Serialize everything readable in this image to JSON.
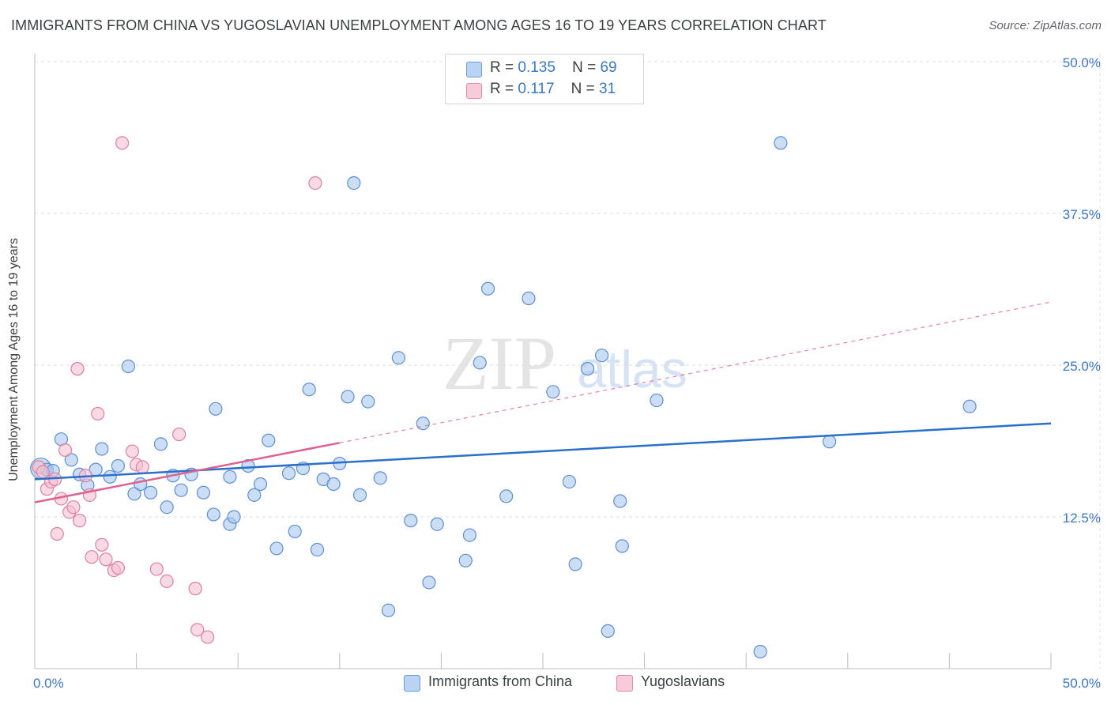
{
  "header": {
    "title": "IMMIGRANTS FROM CHINA VS YUGOSLAVIAN UNEMPLOYMENT AMONG AGES 16 TO 19 YEARS CORRELATION CHART",
    "source": "Source: ZipAtlas.com"
  },
  "legend": {
    "china": {
      "r_label": "R =",
      "r_value": "0.135",
      "n_label": "N =",
      "n_value": "69"
    },
    "yugo": {
      "r_label": "R =",
      "r_value": "0.117",
      "n_label": "N =",
      "n_value": "31"
    }
  },
  "bottom_legend": {
    "china": "Immigrants from China",
    "yugo": "Yugoslavians"
  },
  "colors": {
    "china_fill": "#a9c8ef",
    "china_stroke": "#5b8fd6",
    "china_line": "#2a6fcc",
    "yugo_fill": "#f5c0d1",
    "yugo_stroke": "#e07fa0",
    "yugo_line": "#e0608f",
    "tick_text": "#3a78c8",
    "grid": "#dcdcdc"
  },
  "watermark": {
    "zip": "ZIP",
    "atlas": "atlas"
  },
  "chart_data": {
    "type": "scatter",
    "title": "IMMIGRANTS FROM CHINA VS YUGOSLAVIAN UNEMPLOYMENT AMONG AGES 16 TO 19 YEARS CORRELATION CHART",
    "xlabel": "",
    "ylabel": "Unemployment Among Ages 16 to 19 years",
    "xlim": [
      0,
      50
    ],
    "ylim": [
      0,
      50
    ],
    "x_tick_labels": [
      {
        "value": 0,
        "label": "0.0%"
      },
      {
        "value": 50,
        "label": "50.0%"
      }
    ],
    "y_tick_labels": [
      {
        "value": 12.5,
        "label": "12.5%"
      },
      {
        "value": 25,
        "label": "25.0%"
      },
      {
        "value": 37.5,
        "label": "37.5%"
      },
      {
        "value": 50,
        "label": "50.0%"
      }
    ],
    "series": [
      {
        "name": "Immigrants from China",
        "points": [
          [
            0.3,
            16.5
          ],
          [
            0.6,
            16.4
          ],
          [
            0.9,
            16.3
          ],
          [
            1.3,
            18.9
          ],
          [
            1.8,
            17.2
          ],
          [
            2.2,
            16.0
          ],
          [
            2.6,
            15.1
          ],
          [
            3.0,
            16.4
          ],
          [
            3.3,
            18.1
          ],
          [
            3.7,
            15.8
          ],
          [
            4.1,
            16.7
          ],
          [
            4.6,
            24.9
          ],
          [
            4.9,
            14.4
          ],
          [
            5.2,
            15.2
          ],
          [
            5.7,
            14.5
          ],
          [
            6.2,
            18.5
          ],
          [
            6.5,
            13.3
          ],
          [
            6.8,
            15.9
          ],
          [
            7.2,
            14.7
          ],
          [
            7.7,
            16.0
          ],
          [
            8.3,
            14.5
          ],
          [
            8.8,
            12.7
          ],
          [
            8.9,
            21.4
          ],
          [
            9.6,
            11.9
          ],
          [
            9.6,
            15.8
          ],
          [
            9.8,
            12.5
          ],
          [
            10.5,
            16.7
          ],
          [
            10.8,
            14.3
          ],
          [
            11.1,
            15.2
          ],
          [
            11.5,
            18.8
          ],
          [
            11.9,
            9.9
          ],
          [
            12.5,
            16.1
          ],
          [
            12.8,
            11.3
          ],
          [
            13.2,
            16.5
          ],
          [
            13.5,
            23.0
          ],
          [
            13.9,
            9.8
          ],
          [
            14.2,
            15.6
          ],
          [
            14.7,
            15.2
          ],
          [
            15.0,
            16.9
          ],
          [
            15.4,
            22.4
          ],
          [
            15.7,
            40.0
          ],
          [
            16.0,
            14.3
          ],
          [
            16.4,
            22.0
          ],
          [
            17.0,
            15.7
          ],
          [
            17.4,
            4.8
          ],
          [
            17.9,
            25.6
          ],
          [
            18.5,
            12.2
          ],
          [
            19.1,
            20.2
          ],
          [
            19.4,
            7.1
          ],
          [
            19.8,
            11.9
          ],
          [
            21.2,
            8.9
          ],
          [
            21.4,
            11.0
          ],
          [
            21.9,
            25.2
          ],
          [
            22.3,
            31.3
          ],
          [
            23.2,
            14.2
          ],
          [
            24.3,
            30.5
          ],
          [
            25.5,
            22.8
          ],
          [
            26.3,
            15.4
          ],
          [
            26.6,
            8.6
          ],
          [
            27.2,
            24.7
          ],
          [
            27.9,
            25.8
          ],
          [
            28.2,
            3.1
          ],
          [
            28.8,
            13.8
          ],
          [
            28.9,
            10.1
          ],
          [
            30.6,
            22.1
          ],
          [
            35.7,
            1.4
          ],
          [
            36.7,
            43.3
          ],
          [
            39.1,
            18.7
          ],
          [
            46.0,
            21.6
          ]
        ],
        "trend": {
          "x0": 0,
          "y0": 15.6,
          "x1": 50,
          "y1": 20.2
        }
      },
      {
        "name": "Yugoslavians",
        "points": [
          [
            0.2,
            16.6
          ],
          [
            0.4,
            16.2
          ],
          [
            0.6,
            14.8
          ],
          [
            0.8,
            15.4
          ],
          [
            1.0,
            15.6
          ],
          [
            1.1,
            11.1
          ],
          [
            1.3,
            14.0
          ],
          [
            1.5,
            18.0
          ],
          [
            1.7,
            12.9
          ],
          [
            1.9,
            13.3
          ],
          [
            2.1,
            24.7
          ],
          [
            2.2,
            12.2
          ],
          [
            2.5,
            15.9
          ],
          [
            2.7,
            14.3
          ],
          [
            2.8,
            9.2
          ],
          [
            3.1,
            21.0
          ],
          [
            3.3,
            10.2
          ],
          [
            3.5,
            9.0
          ],
          [
            3.9,
            8.1
          ],
          [
            4.1,
            8.3
          ],
          [
            4.3,
            43.3
          ],
          [
            4.8,
            17.9
          ],
          [
            5.0,
            16.8
          ],
          [
            5.3,
            16.6
          ],
          [
            6.0,
            8.2
          ],
          [
            6.5,
            7.2
          ],
          [
            7.1,
            19.3
          ],
          [
            7.9,
            6.6
          ],
          [
            8.0,
            3.2
          ],
          [
            8.5,
            2.6
          ],
          [
            13.8,
            40.0
          ]
        ],
        "trend": {
          "x0": 0,
          "y0": 13.7,
          "x1": 15,
          "y1": 18.6
        },
        "trend_extension": {
          "x0": 15,
          "y0": 18.6,
          "x1": 50,
          "y1": 30.2
        }
      }
    ]
  }
}
